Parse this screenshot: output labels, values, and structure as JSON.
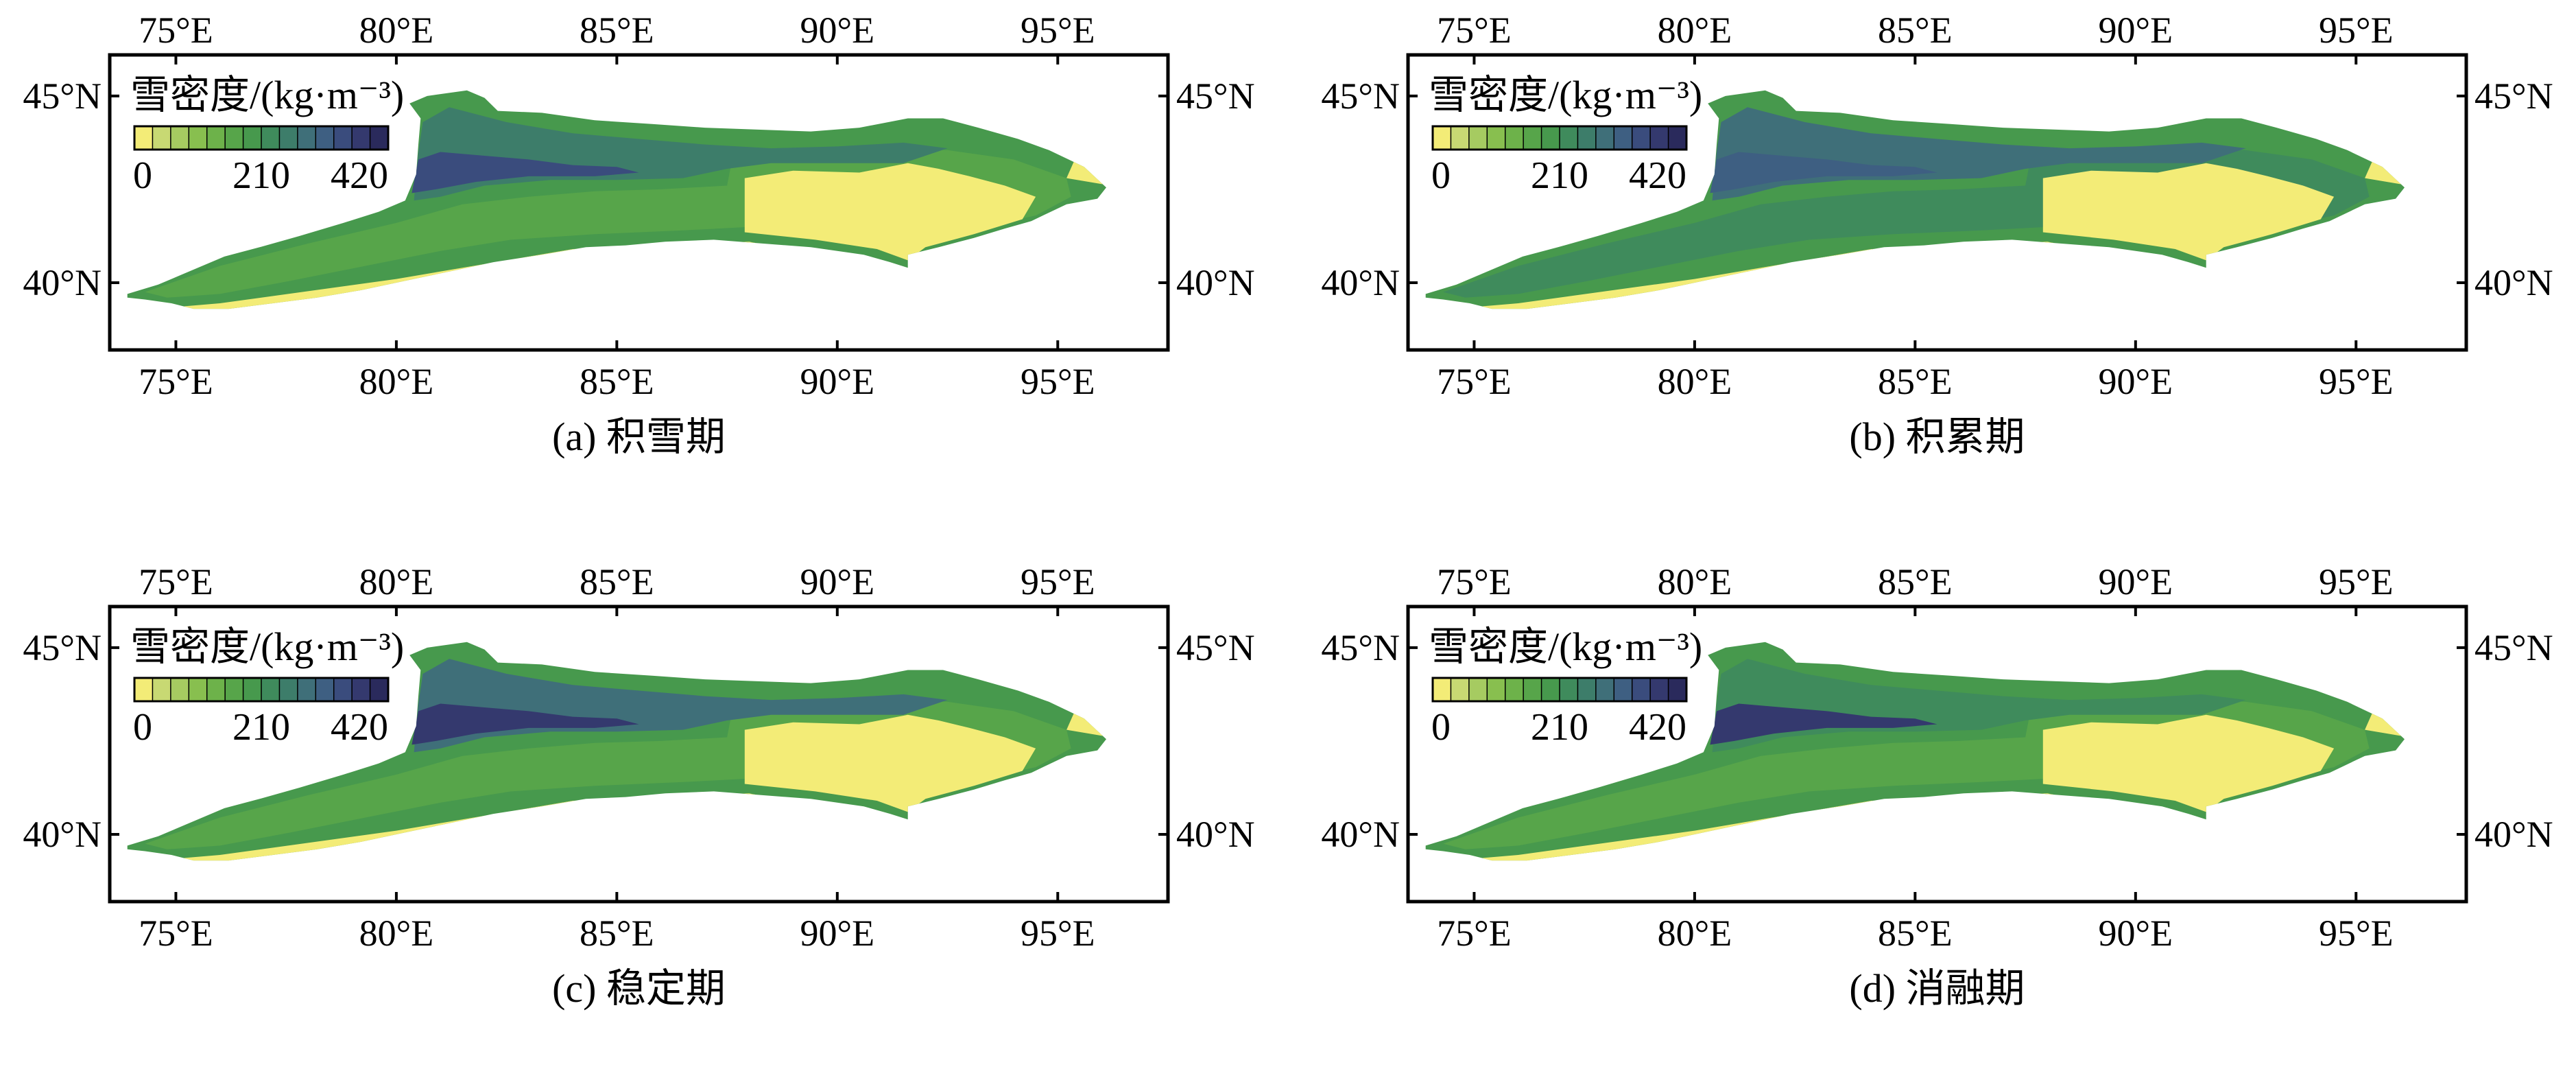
{
  "figure": {
    "lon_ticks": [
      "75°E",
      "80°E",
      "85°E",
      "90°E",
      "95°E"
    ],
    "lat_ticks": [
      "45°N",
      "40°N"
    ],
    "legend": {
      "title": "雪密度/(kg·m⁻³)",
      "tick_labels": [
        "0",
        "210",
        "420"
      ],
      "range": [
        0,
        420
      ],
      "colors": [
        "#f3ec77",
        "#c8d973",
        "#a6cb61",
        "#88bf4f",
        "#6db24a",
        "#57a54a",
        "#47994d",
        "#3f8b5c",
        "#3d7d6a",
        "#3f6f79",
        "#3e5f82",
        "#3a4c7d",
        "#34396e",
        "#2a2a5c"
      ]
    },
    "panels": [
      {
        "id": "a",
        "caption": "(a) 积雪期"
      },
      {
        "id": "b",
        "caption": "(b) 积累期"
      },
      {
        "id": "c",
        "caption": "(c) 稳定期"
      },
      {
        "id": "d",
        "caption": "(d) 消融期"
      }
    ],
    "map_extent": {
      "lon": [
        73.5,
        97.5
      ],
      "lat": [
        38.2,
        46.1
      ]
    }
  }
}
